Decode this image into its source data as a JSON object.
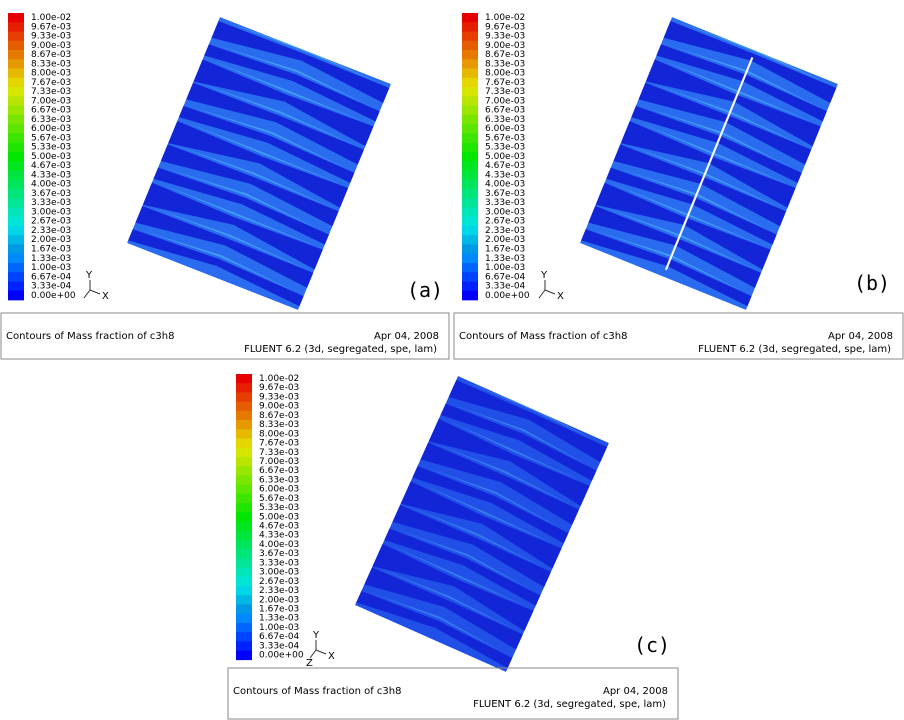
{
  "colorbar": {
    "labels": [
      "1.00e-02",
      "9.67e-03",
      "9.33e-03",
      "9.00e-03",
      "8.67e-03",
      "8.33e-03",
      "8.00e-03",
      "7.67e-03",
      "7.33e-03",
      "7.00e-03",
      "6.67e-03",
      "6.33e-03",
      "6.00e-03",
      "5.67e-03",
      "5.33e-03",
      "5.00e-03",
      "4.67e-03",
      "4.33e-03",
      "4.00e-03",
      "3.67e-03",
      "3.33e-03",
      "3.00e-03",
      "2.67e-03",
      "2.33e-03",
      "2.00e-03",
      "1.67e-03",
      "1.33e-03",
      "1.00e-03",
      "6.67e-04",
      "3.33e-04",
      "0.00e+00"
    ]
  },
  "panels": [
    {
      "label": "(a)",
      "axes": [
        "Y",
        "X"
      ],
      "caption": "Contours of Mass fraction of c3h8",
      "date": "Apr 04, 2008",
      "solver": "FLUENT 6.2 (3d, segregated, spe, lam)"
    },
    {
      "label": "(b)",
      "axes": [
        "Y",
        "X"
      ],
      "caption": "Contours of Mass fraction of c3h8",
      "date": "Apr 04, 2008",
      "solver": "FLUENT 6.2 (3d, segregated, spe, lam)"
    },
    {
      "label": "(c)",
      "axes": [
        "Y",
        "Z",
        "X"
      ],
      "caption": "Contours of Mass fraction of c3h8",
      "date": "Apr 04, 2008",
      "solver": "FLUENT 6.2 (3d, segregated, spe, lam)"
    }
  ]
}
